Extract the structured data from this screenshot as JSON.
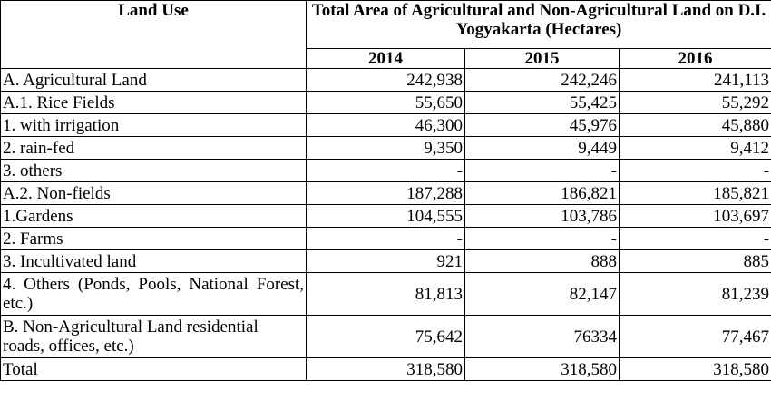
{
  "table": {
    "header": {
      "land_use": "Land Use",
      "total_area": "Total Area of Agricultural and Non-Agricultural Land on D.I. Yogyakarta (Hectares)",
      "years": [
        "2014",
        "2015",
        "2016"
      ]
    },
    "rows": [
      {
        "label": "A. Agricultural Land",
        "values": [
          "242,938",
          "242,246",
          "241,113"
        ]
      },
      {
        "label": "A.1. Rice Fields",
        "values": [
          "55,650",
          "55,425",
          "55,292"
        ]
      },
      {
        "label": "1. with irrigation",
        "values": [
          "46,300",
          "45,976",
          "45,880"
        ]
      },
      {
        "label": "2. rain-fed",
        "values": [
          "9,350",
          "9,449",
          "9,412"
        ]
      },
      {
        "label": "3. others",
        "values": [
          "-",
          "-",
          "-"
        ]
      },
      {
        "label": "A.2. Non-fields",
        "values": [
          "187,288",
          "186,821",
          "185,821"
        ]
      },
      {
        "label": "1.Gardens",
        "values": [
          "104,555",
          "103,786",
          "103,697"
        ]
      },
      {
        "label": "2. Farms",
        "values": [
          "-",
          "-",
          "-"
        ]
      },
      {
        "label": "3. Incultivated land",
        "values": [
          "921",
          "888",
          "885"
        ]
      },
      {
        "label": "4. Others (Ponds, Pools, National Forest, etc.)",
        "values": [
          "81,813",
          "82,147",
          "81,239"
        ]
      },
      {
        "label": "B. Non-Agricultural Land residential roads, offices, etc.)",
        "values": [
          "75,642",
          "76334",
          "77,467"
        ]
      },
      {
        "label": "Total",
        "values": [
          "318,580",
          "318,580",
          "318,580"
        ]
      }
    ]
  }
}
